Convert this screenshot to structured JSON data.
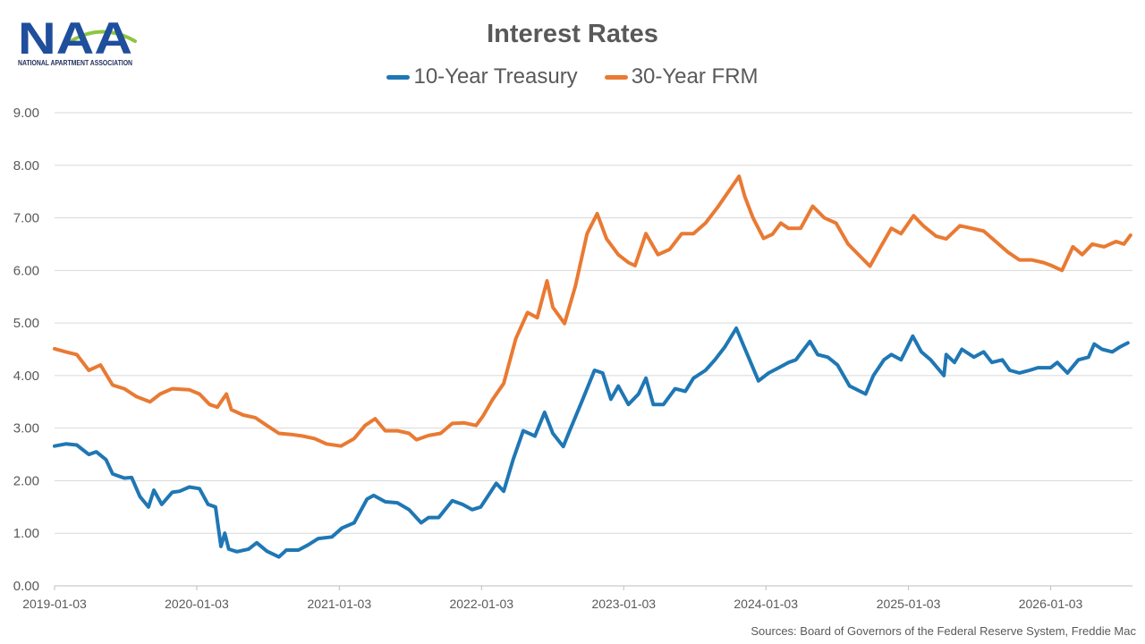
{
  "logo": {
    "letters": "NAA",
    "caption": "NATIONAL APARTMENT ASSOCIATION",
    "color_blue": "#1f4e9c",
    "color_green": "#8dc63f"
  },
  "source": "Sources: Board of Governors of the Federal Reserve System, Freddie Mac",
  "colors": {
    "treasury": "#1f77b4",
    "frm": "#e97a33",
    "grid": "#d9d9d9",
    "text": "#595959"
  },
  "chart_data": {
    "type": "line",
    "title": "Interest Rates",
    "xlabel": "",
    "ylabel": "",
    "legend_position": "top-center",
    "grid": true,
    "ylim": [
      0,
      9
    ],
    "xlim": [
      "2019-01-03",
      "2026-08-01"
    ],
    "y_ticks": [
      "0.00",
      "1.00",
      "2.00",
      "3.00",
      "4.00",
      "5.00",
      "6.00",
      "7.00",
      "8.00",
      "9.00"
    ],
    "x_ticks": [
      "2019-01-03",
      "2020-01-03",
      "2021-01-03",
      "2022-01-03",
      "2023-01-03",
      "2024-01-03",
      "2025-01-03",
      "2026-01-03"
    ],
    "series": [
      {
        "name": "10-Year Treasury",
        "points": [
          [
            "2019-01-03",
            2.66
          ],
          [
            "2019-02-01",
            2.7
          ],
          [
            "2019-03-01",
            2.68
          ],
          [
            "2019-04-01",
            2.5
          ],
          [
            "2019-04-20",
            2.55
          ],
          [
            "2019-05-15",
            2.4
          ],
          [
            "2019-06-01",
            2.13
          ],
          [
            "2019-07-01",
            2.05
          ],
          [
            "2019-07-20",
            2.06
          ],
          [
            "2019-08-10",
            1.7
          ],
          [
            "2019-09-01",
            1.5
          ],
          [
            "2019-09-15",
            1.82
          ],
          [
            "2019-10-05",
            1.55
          ],
          [
            "2019-11-01",
            1.78
          ],
          [
            "2019-11-20",
            1.8
          ],
          [
            "2019-12-15",
            1.88
          ],
          [
            "2020-01-10",
            1.85
          ],
          [
            "2020-02-01",
            1.55
          ],
          [
            "2020-02-20",
            1.5
          ],
          [
            "2020-03-05",
            0.75
          ],
          [
            "2020-03-15",
            1.0
          ],
          [
            "2020-03-25",
            0.7
          ],
          [
            "2020-04-15",
            0.65
          ],
          [
            "2020-05-15",
            0.7
          ],
          [
            "2020-06-05",
            0.82
          ],
          [
            "2020-07-01",
            0.66
          ],
          [
            "2020-08-01",
            0.55
          ],
          [
            "2020-08-20",
            0.68
          ],
          [
            "2020-09-20",
            0.68
          ],
          [
            "2020-10-15",
            0.78
          ],
          [
            "2020-11-10",
            0.9
          ],
          [
            "2020-12-15",
            0.93
          ],
          [
            "2021-01-10",
            1.1
          ],
          [
            "2021-02-10",
            1.2
          ],
          [
            "2021-03-15",
            1.65
          ],
          [
            "2021-04-01",
            1.72
          ],
          [
            "2021-05-01",
            1.6
          ],
          [
            "2021-06-01",
            1.58
          ],
          [
            "2021-07-01",
            1.45
          ],
          [
            "2021-08-01",
            1.2
          ],
          [
            "2021-08-20",
            1.3
          ],
          [
            "2021-09-15",
            1.3
          ],
          [
            "2021-10-20",
            1.62
          ],
          [
            "2021-11-15",
            1.55
          ],
          [
            "2021-12-10",
            1.45
          ],
          [
            "2022-01-01",
            1.5
          ],
          [
            "2022-02-10",
            1.95
          ],
          [
            "2022-03-01",
            1.8
          ],
          [
            "2022-03-25",
            2.4
          ],
          [
            "2022-04-20",
            2.95
          ],
          [
            "2022-05-20",
            2.85
          ],
          [
            "2022-06-14",
            3.3
          ],
          [
            "2022-07-05",
            2.9
          ],
          [
            "2022-08-01",
            2.65
          ],
          [
            "2022-08-20",
            3.0
          ],
          [
            "2022-09-20",
            3.55
          ],
          [
            "2022-10-20",
            4.1
          ],
          [
            "2022-11-10",
            4.05
          ],
          [
            "2022-12-01",
            3.55
          ],
          [
            "2022-12-20",
            3.8
          ],
          [
            "2023-01-15",
            3.45
          ],
          [
            "2023-02-10",
            3.65
          ],
          [
            "2023-03-01",
            3.95
          ],
          [
            "2023-03-20",
            3.45
          ],
          [
            "2023-04-15",
            3.45
          ],
          [
            "2023-05-15",
            3.75
          ],
          [
            "2023-06-10",
            3.7
          ],
          [
            "2023-07-01",
            3.95
          ],
          [
            "2023-08-01",
            4.1
          ],
          [
            "2023-08-25",
            4.3
          ],
          [
            "2023-09-20",
            4.55
          ],
          [
            "2023-10-19",
            4.9
          ],
          [
            "2023-11-05",
            4.6
          ],
          [
            "2023-11-25",
            4.25
          ],
          [
            "2023-12-15",
            3.9
          ],
          [
            "2024-01-10",
            4.05
          ],
          [
            "2024-02-05",
            4.15
          ],
          [
            "2024-03-01",
            4.25
          ],
          [
            "2024-03-20",
            4.3
          ],
          [
            "2024-04-25",
            4.65
          ],
          [
            "2024-05-15",
            4.4
          ],
          [
            "2024-06-10",
            4.35
          ],
          [
            "2024-07-05",
            4.2
          ],
          [
            "2024-08-05",
            3.8
          ],
          [
            "2024-09-15",
            3.65
          ],
          [
            "2024-10-05",
            4.0
          ],
          [
            "2024-11-01",
            4.3
          ],
          [
            "2024-11-20",
            4.4
          ],
          [
            "2024-12-15",
            4.3
          ],
          [
            "2025-01-14",
            4.75
          ],
          [
            "2025-02-05",
            4.45
          ],
          [
            "2025-03-01",
            4.3
          ],
          [
            "2025-04-04",
            4.0
          ],
          [
            "2025-04-10",
            4.4
          ],
          [
            "2025-05-01",
            4.25
          ],
          [
            "2025-05-20",
            4.5
          ],
          [
            "2025-06-20",
            4.35
          ],
          [
            "2025-07-15",
            4.45
          ],
          [
            "2025-08-05",
            4.25
          ],
          [
            "2025-09-01",
            4.3
          ],
          [
            "2025-09-20",
            4.1
          ],
          [
            "2025-10-15",
            4.05
          ],
          [
            "2025-11-10",
            4.1
          ],
          [
            "2025-12-01",
            4.15
          ],
          [
            "2026-01-03",
            4.15
          ],
          [
            "2026-01-20",
            4.25
          ],
          [
            "2026-02-15",
            4.05
          ],
          [
            "2026-03-15",
            4.3
          ],
          [
            "2026-04-10",
            4.35
          ],
          [
            "2026-04-25",
            4.6
          ],
          [
            "2026-05-15",
            4.5
          ],
          [
            "2026-06-10",
            4.45
          ],
          [
            "2026-07-01",
            4.55
          ],
          [
            "2026-07-20",
            4.62
          ]
        ]
      },
      {
        "name": "30-Year FRM",
        "points": [
          [
            "2019-01-03",
            4.51
          ],
          [
            "2019-02-01",
            4.45
          ],
          [
            "2019-03-01",
            4.4
          ],
          [
            "2019-04-01",
            4.1
          ],
          [
            "2019-05-01",
            4.2
          ],
          [
            "2019-06-01",
            3.82
          ],
          [
            "2019-07-01",
            3.75
          ],
          [
            "2019-08-01",
            3.6
          ],
          [
            "2019-09-05",
            3.5
          ],
          [
            "2019-10-01",
            3.65
          ],
          [
            "2019-11-01",
            3.75
          ],
          [
            "2019-12-15",
            3.73
          ],
          [
            "2020-01-10",
            3.65
          ],
          [
            "2020-02-05",
            3.45
          ],
          [
            "2020-02-25",
            3.4
          ],
          [
            "2020-03-19",
            3.65
          ],
          [
            "2020-04-01",
            3.35
          ],
          [
            "2020-05-01",
            3.25
          ],
          [
            "2020-06-01",
            3.2
          ],
          [
            "2020-07-01",
            3.05
          ],
          [
            "2020-08-01",
            2.9
          ],
          [
            "2020-09-01",
            2.88
          ],
          [
            "2020-10-01",
            2.85
          ],
          [
            "2020-11-01",
            2.8
          ],
          [
            "2020-12-01",
            2.7
          ],
          [
            "2021-01-07",
            2.66
          ],
          [
            "2021-02-10",
            2.8
          ],
          [
            "2021-03-10",
            3.05
          ],
          [
            "2021-04-05",
            3.18
          ],
          [
            "2021-05-01",
            2.95
          ],
          [
            "2021-06-01",
            2.95
          ],
          [
            "2021-07-01",
            2.9
          ],
          [
            "2021-07-20",
            2.78
          ],
          [
            "2021-08-20",
            2.86
          ],
          [
            "2021-09-20",
            2.9
          ],
          [
            "2021-10-20",
            3.09
          ],
          [
            "2021-11-20",
            3.1
          ],
          [
            "2021-12-20",
            3.05
          ],
          [
            "2022-01-06",
            3.22
          ],
          [
            "2022-02-01",
            3.55
          ],
          [
            "2022-03-01",
            3.85
          ],
          [
            "2022-04-01",
            4.7
          ],
          [
            "2022-05-01",
            5.2
          ],
          [
            "2022-05-26",
            5.1
          ],
          [
            "2022-06-20",
            5.8
          ],
          [
            "2022-07-05",
            5.3
          ],
          [
            "2022-08-04",
            4.99
          ],
          [
            "2022-09-01",
            5.7
          ],
          [
            "2022-10-01",
            6.7
          ],
          [
            "2022-10-27",
            7.08
          ],
          [
            "2022-11-20",
            6.6
          ],
          [
            "2022-12-20",
            6.3
          ],
          [
            "2023-01-15",
            6.15
          ],
          [
            "2023-02-01",
            6.09
          ],
          [
            "2023-03-01",
            6.7
          ],
          [
            "2023-04-01",
            6.3
          ],
          [
            "2023-05-01",
            6.4
          ],
          [
            "2023-06-01",
            6.7
          ],
          [
            "2023-07-01",
            6.7
          ],
          [
            "2023-08-01",
            6.9
          ],
          [
            "2023-09-01",
            7.2
          ],
          [
            "2023-10-26",
            7.79
          ],
          [
            "2023-11-10",
            7.4
          ],
          [
            "2023-12-01",
            7.0
          ],
          [
            "2023-12-28",
            6.61
          ],
          [
            "2024-01-20",
            6.69
          ],
          [
            "2024-02-10",
            6.9
          ],
          [
            "2024-03-01",
            6.8
          ],
          [
            "2024-04-01",
            6.8
          ],
          [
            "2024-05-02",
            7.22
          ],
          [
            "2024-06-01",
            7.0
          ],
          [
            "2024-07-01",
            6.9
          ],
          [
            "2024-08-01",
            6.5
          ],
          [
            "2024-09-26",
            6.08
          ],
          [
            "2024-10-20",
            6.4
          ],
          [
            "2024-11-20",
            6.8
          ],
          [
            "2024-12-15",
            6.7
          ],
          [
            "2025-01-16",
            7.04
          ],
          [
            "2025-02-10",
            6.85
          ],
          [
            "2025-03-15",
            6.65
          ],
          [
            "2025-04-10",
            6.6
          ],
          [
            "2025-05-15",
            6.85
          ],
          [
            "2025-06-15",
            6.8
          ],
          [
            "2025-07-15",
            6.75
          ],
          [
            "2025-08-15",
            6.55
          ],
          [
            "2025-09-15",
            6.35
          ],
          [
            "2025-10-15",
            6.2
          ],
          [
            "2025-11-15",
            6.2
          ],
          [
            "2025-12-15",
            6.15
          ],
          [
            "2026-01-03",
            6.1
          ],
          [
            "2026-02-01",
            6.0
          ],
          [
            "2026-03-01",
            6.45
          ],
          [
            "2026-03-25",
            6.3
          ],
          [
            "2026-04-20",
            6.5
          ],
          [
            "2026-05-20",
            6.45
          ],
          [
            "2026-06-20",
            6.55
          ],
          [
            "2026-07-10",
            6.5
          ],
          [
            "2026-07-27",
            6.67
          ]
        ]
      }
    ]
  }
}
